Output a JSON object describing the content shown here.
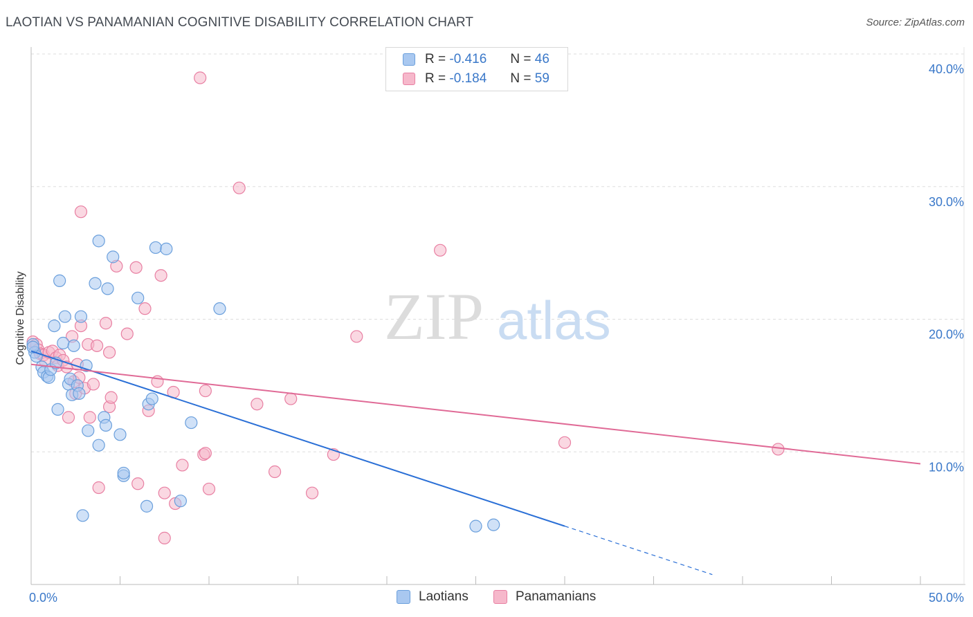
{
  "header": {
    "title": "LAOTIAN VS PANAMANIAN COGNITIVE DISABILITY CORRELATION CHART",
    "source": "Source: ZipAtlas.com"
  },
  "watermark": {
    "zip": "ZIP",
    "atlas": "atlas"
  },
  "legend": {
    "r_label": "R =",
    "n_label": "N =",
    "laotians": {
      "r": "-0.416",
      "n": "46"
    },
    "panamanians": {
      "r": "-0.184",
      "n": "59"
    }
  },
  "colors": {
    "laotians_fill": "#a9c8f0",
    "laotians_stroke": "#6a9fdc",
    "laotians_line": "#2a6fd6",
    "panamanians_fill": "#f6b8cb",
    "panamanians_stroke": "#e87fa2",
    "panamanians_line": "#e06a96",
    "tick_label": "#3a78c9",
    "grid": "#dddddd"
  },
  "chart_data": {
    "type": "scatter",
    "title": "LAOTIAN VS PANAMANIAN COGNITIVE DISABILITY CORRELATION CHART",
    "xlabel": "",
    "ylabel": "Cognitive Disability",
    "xlim": [
      0,
      50
    ],
    "ylim": [
      0,
      40
    ],
    "x_tick_labels": [
      "0.0%",
      "50.0%"
    ],
    "y_ticks": [
      10,
      20,
      30,
      40
    ],
    "y_tick_labels": [
      "10.0%",
      "20.0%",
      "30.0%",
      "40.0%"
    ],
    "grid": true,
    "series": [
      {
        "name": "Laotians",
        "r": -0.416,
        "n": 46,
        "trend": {
          "x0": 0,
          "y0": 17.6,
          "x1": 30,
          "y1": 4.4,
          "dashed_to_x": 38.3
        },
        "points": [
          [
            0.1,
            18.1
          ],
          [
            0.2,
            17.5
          ],
          [
            0.3,
            17.2
          ],
          [
            0.6,
            16.4
          ],
          [
            0.7,
            16.0
          ],
          [
            0.9,
            15.7
          ],
          [
            1.0,
            15.6
          ],
          [
            1.1,
            16.2
          ],
          [
            1.3,
            19.5
          ],
          [
            1.4,
            16.7
          ],
          [
            1.5,
            13.2
          ],
          [
            1.6,
            22.9
          ],
          [
            1.8,
            18.2
          ],
          [
            1.9,
            20.2
          ],
          [
            2.1,
            15.1
          ],
          [
            2.2,
            15.5
          ],
          [
            2.3,
            14.3
          ],
          [
            2.4,
            18.0
          ],
          [
            2.6,
            15.0
          ],
          [
            2.7,
            14.4
          ],
          [
            2.8,
            20.2
          ],
          [
            2.9,
            5.2
          ],
          [
            3.1,
            16.5
          ],
          [
            3.2,
            11.6
          ],
          [
            3.6,
            22.7
          ],
          [
            3.8,
            25.9
          ],
          [
            3.8,
            10.5
          ],
          [
            4.1,
            12.6
          ],
          [
            4.2,
            12.0
          ],
          [
            4.3,
            22.3
          ],
          [
            4.6,
            24.7
          ],
          [
            5.0,
            11.3
          ],
          [
            5.2,
            8.2
          ],
          [
            5.2,
            8.4
          ],
          [
            6.0,
            21.6
          ],
          [
            6.5,
            5.9
          ],
          [
            6.6,
            13.6
          ],
          [
            6.8,
            14.0
          ],
          [
            7.0,
            25.4
          ],
          [
            7.6,
            25.3
          ],
          [
            8.4,
            6.3
          ],
          [
            9.0,
            12.2
          ],
          [
            10.6,
            20.8
          ],
          [
            25.0,
            4.4
          ],
          [
            26.0,
            4.5
          ],
          [
            0.1,
            17.9
          ]
        ]
      },
      {
        "name": "Panamanians",
        "r": -0.184,
        "n": 59,
        "trend": {
          "x0": 0,
          "y0": 16.6,
          "x1": 50,
          "y1": 9.1
        },
        "points": [
          [
            0.1,
            18.3
          ],
          [
            0.3,
            18.1
          ],
          [
            0.4,
            17.7
          ],
          [
            0.5,
            17.4
          ],
          [
            0.7,
            17.3
          ],
          [
            0.8,
            16.8
          ],
          [
            1.0,
            17.5
          ],
          [
            1.2,
            17.6
          ],
          [
            1.4,
            17.1
          ],
          [
            1.5,
            16.5
          ],
          [
            1.6,
            17.3
          ],
          [
            1.8,
            16.9
          ],
          [
            2.0,
            16.4
          ],
          [
            2.1,
            12.6
          ],
          [
            2.3,
            18.7
          ],
          [
            2.4,
            15.3
          ],
          [
            2.5,
            14.4
          ],
          [
            2.6,
            16.6
          ],
          [
            2.7,
            15.6
          ],
          [
            2.8,
            19.5
          ],
          [
            2.8,
            28.1
          ],
          [
            3.0,
            14.8
          ],
          [
            3.2,
            18.1
          ],
          [
            3.3,
            12.6
          ],
          [
            3.5,
            15.1
          ],
          [
            3.7,
            18.0
          ],
          [
            3.8,
            7.3
          ],
          [
            4.2,
            19.7
          ],
          [
            4.4,
            13.4
          ],
          [
            4.4,
            17.5
          ],
          [
            4.5,
            14.1
          ],
          [
            4.8,
            24.0
          ],
          [
            5.4,
            18.9
          ],
          [
            5.9,
            23.9
          ],
          [
            6.0,
            7.6
          ],
          [
            6.4,
            20.8
          ],
          [
            6.6,
            13.1
          ],
          [
            7.1,
            15.3
          ],
          [
            7.3,
            23.3
          ],
          [
            7.5,
            6.9
          ],
          [
            7.5,
            3.5
          ],
          [
            8.0,
            14.5
          ],
          [
            8.1,
            6.1
          ],
          [
            8.5,
            9.0
          ],
          [
            9.5,
            38.2
          ],
          [
            9.7,
            9.8
          ],
          [
            9.8,
            9.9
          ],
          [
            9.8,
            14.6
          ],
          [
            10.0,
            7.2
          ],
          [
            11.7,
            29.9
          ],
          [
            12.7,
            13.6
          ],
          [
            13.7,
            8.5
          ],
          [
            14.6,
            14.0
          ],
          [
            15.8,
            6.9
          ],
          [
            17.0,
            9.8
          ],
          [
            18.3,
            18.7
          ],
          [
            23.0,
            25.2
          ],
          [
            30.0,
            10.7
          ],
          [
            42.0,
            10.2
          ]
        ]
      }
    ]
  }
}
